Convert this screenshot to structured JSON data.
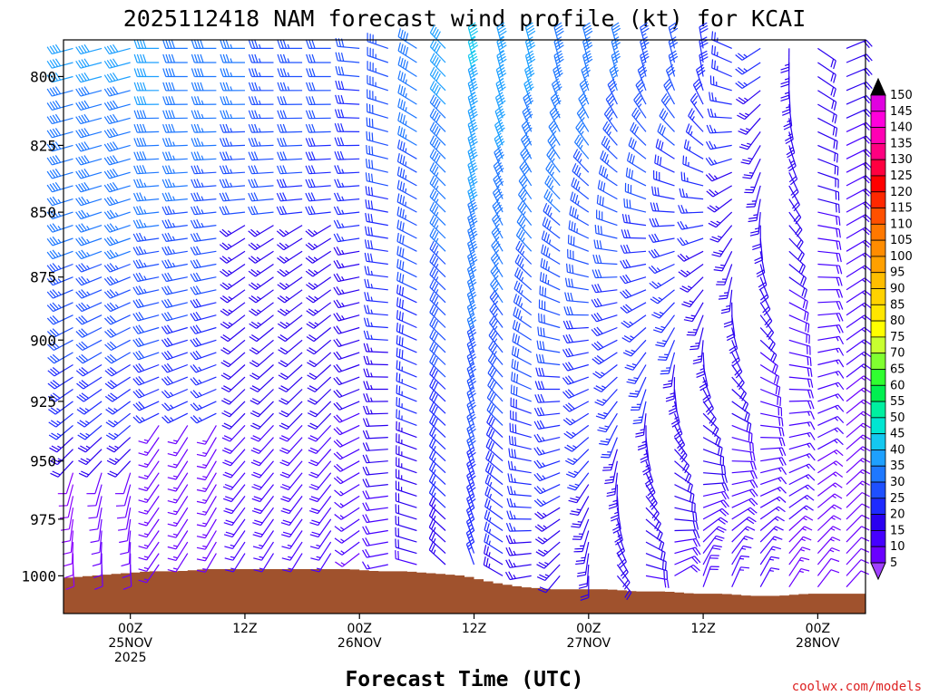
{
  "chart_data": {
    "type": "wind-barb-time-height",
    "title": "2025112418 NAM forecast wind profile (kt) for KCAI",
    "xlabel": "Forecast Time (UTC)",
    "ylabel": "",
    "credit": "coolwx.com/models",
    "units": "kt",
    "time_range_hours": [
      -1,
      83
    ],
    "time_step_hours": 3,
    "pressure_range_hpa": [
      1017,
      787
    ],
    "y_ticks": [
      800,
      825,
      850,
      875,
      900,
      925,
      950,
      975,
      1000
    ],
    "y_tick_labels": [
      "800",
      "825",
      "850",
      "875",
      "900",
      "925",
      "950",
      "975",
      "1000"
    ],
    "x_ticks": [
      {
        "hour": 6,
        "line1": "00Z",
        "line2": "25NOV",
        "line3": "2025"
      },
      {
        "hour": 18,
        "line1": "12Z",
        "line2": "",
        "line3": ""
      },
      {
        "hour": 30,
        "line1": "00Z",
        "line2": "26NOV",
        "line3": ""
      },
      {
        "hour": 42,
        "line1": "12Z",
        "line2": "",
        "line3": ""
      },
      {
        "hour": 54,
        "line1": "00Z",
        "line2": "27NOV",
        "line3": ""
      },
      {
        "hour": 66,
        "line1": "12Z",
        "line2": "",
        "line3": ""
      },
      {
        "hour": 78,
        "line1": "00Z",
        "line2": "28NOV",
        "line3": ""
      }
    ],
    "colorbar": {
      "levels": [
        5,
        10,
        15,
        20,
        25,
        30,
        35,
        40,
        45,
        50,
        55,
        60,
        65,
        70,
        75,
        80,
        85,
        90,
        95,
        100,
        105,
        110,
        115,
        120,
        125,
        130,
        135,
        140,
        145,
        150
      ],
      "labels": [
        "5",
        "10",
        "15",
        "20",
        "25",
        "30",
        "35",
        "40",
        "45",
        "50",
        "55",
        "60",
        "65",
        "70",
        "75",
        "80",
        "85",
        "90",
        "95",
        "100",
        "105",
        "110",
        "115",
        "120",
        "125",
        "130",
        "135",
        "140",
        "145",
        "150"
      ],
      "colors": [
        "#8a00ff",
        "#6a00ff",
        "#4600ff",
        "#2a00f0",
        "#1e2aff",
        "#1e50ff",
        "#1e78ff",
        "#1ea0ff",
        "#14c8f0",
        "#00e6d2",
        "#00f0a0",
        "#00f050",
        "#30ff30",
        "#80ff30",
        "#c8ff30",
        "#ffff00",
        "#ffe600",
        "#ffd200",
        "#ffbe00",
        "#ffa000",
        "#ff8c00",
        "#ff7800",
        "#ff5000",
        "#ff2800",
        "#ff0000",
        "#ff0040",
        "#ff0080",
        "#ff00b4",
        "#ff00dc",
        "#e000e0"
      ],
      "under_color": "#a040ff",
      "over_color": "#000000"
    },
    "surface_pressure_hpa": {
      "hours": [
        -1,
        2,
        5,
        8,
        11,
        14,
        17,
        20,
        23,
        26,
        29,
        32,
        35,
        38,
        41,
        44,
        47,
        50,
        53,
        56,
        59,
        62,
        65,
        68,
        71,
        74,
        77,
        80,
        83
      ],
      "values": [
        1001,
        1000,
        999,
        998,
        998,
        997,
        997,
        997,
        997,
        997,
        997,
        998,
        998,
        999,
        1000,
        1003,
        1005,
        1006,
        1006,
        1006,
        1007,
        1007,
        1008,
        1008,
        1009,
        1009,
        1008,
        1008,
        1008
      ]
    },
    "wind_profile_description": "Barbs every 3 h (-1..83 h) and every 5 hPa. Westerly (W-NW) flow ~30-45 kt aloft early; weak southerly 5-15 kt near the surface through 26NOV; northerly 20-45 kt after 12Z 26NOV, veering to northeast 10-25 kt late."
  }
}
